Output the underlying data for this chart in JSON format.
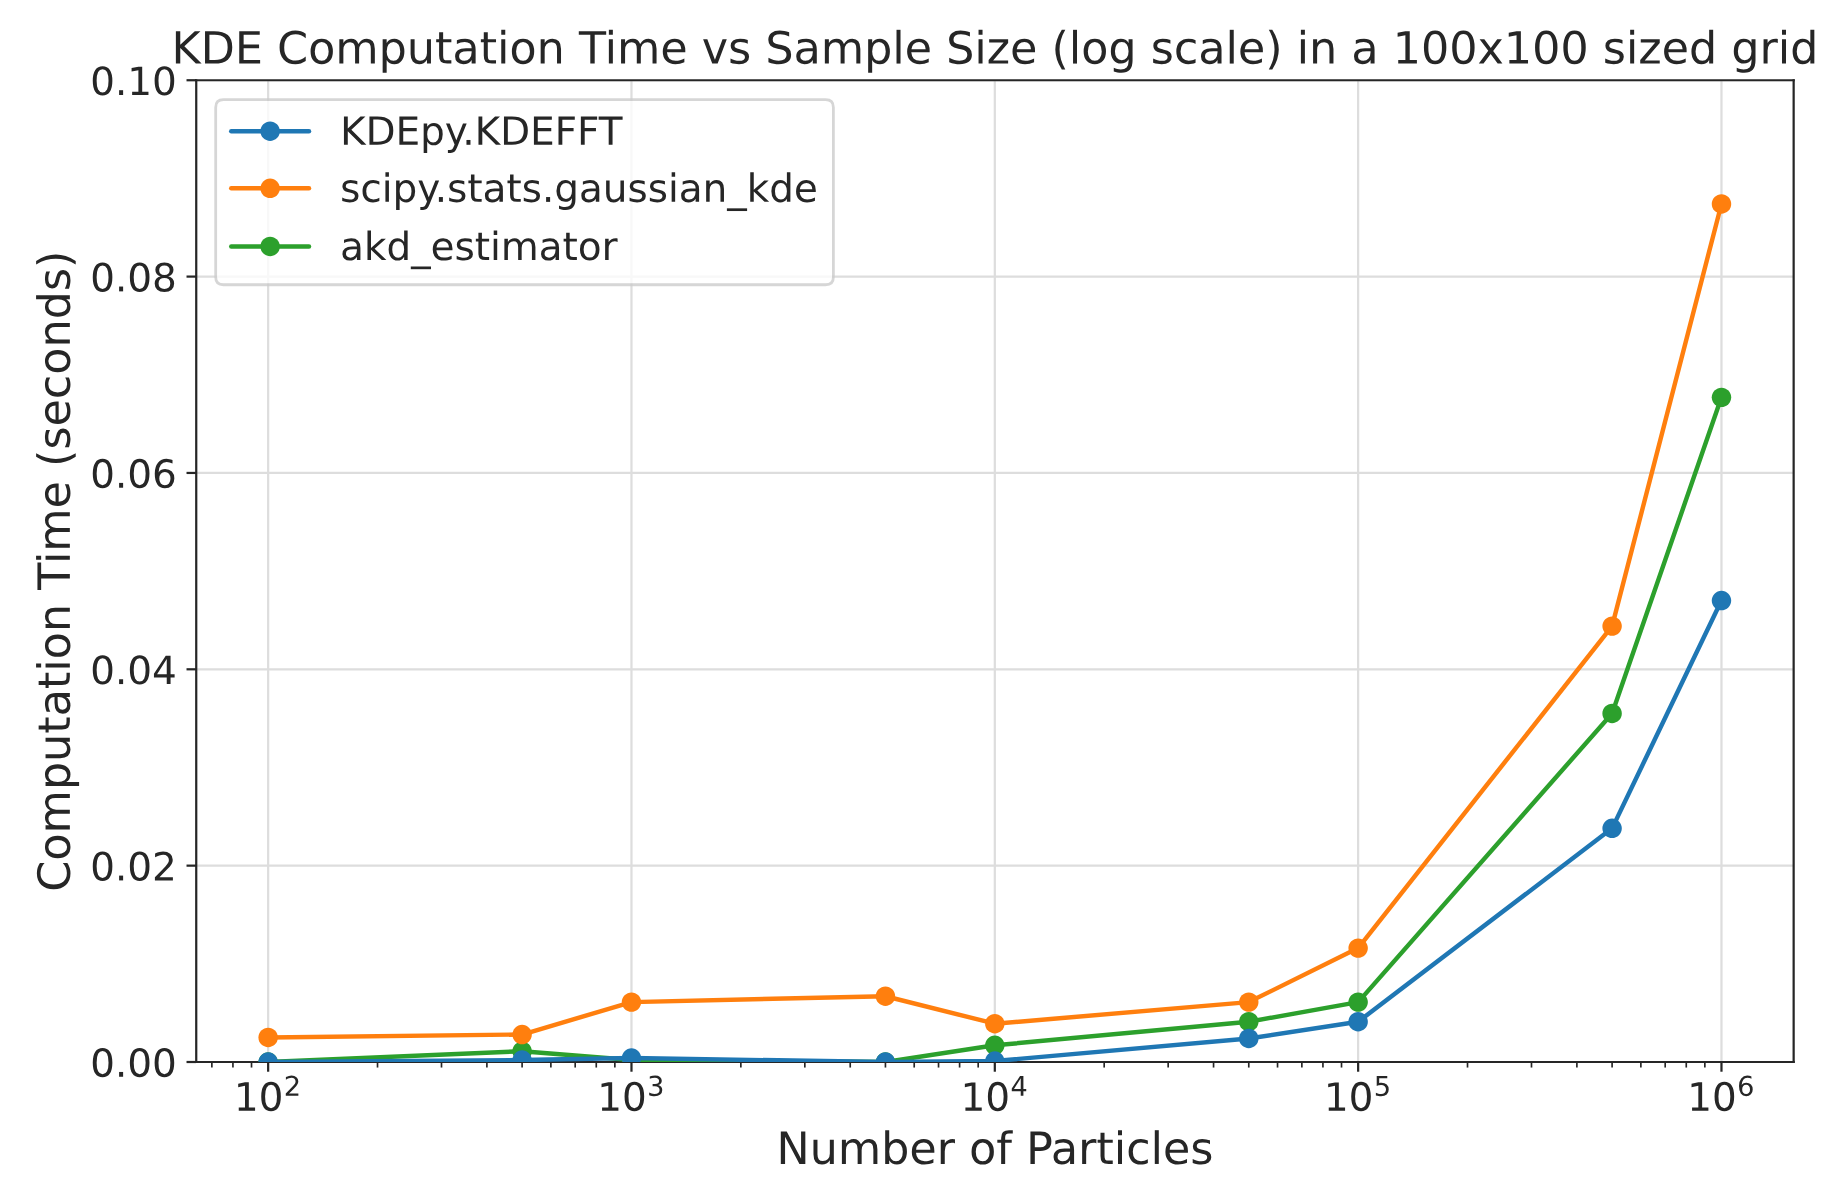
{
  "chart_data": {
    "type": "line",
    "title": "KDE Computation Time vs Sample Size (log scale) in a 100x100 sized grid",
    "xlabel": "Number of Particles",
    "ylabel": "Computation Time (seconds)",
    "x": [
      100,
      500,
      1000,
      5000,
      10000,
      50000,
      100000,
      500000,
      1000000
    ],
    "series": [
      {
        "name": "KDEpy.KDEFFT",
        "color": "#1f77b4",
        "values": [
          0.0,
          0.0002,
          0.0004,
          0.0,
          0.0001,
          0.0024,
          0.0041,
          0.0238,
          0.047
        ]
      },
      {
        "name": "scipy.stats.gaussian_kde",
        "color": "#ff7f0e",
        "values": [
          0.0025,
          0.0028,
          0.0061,
          0.0067,
          0.0039,
          0.0061,
          0.0116,
          0.0444,
          0.0874
        ]
      },
      {
        "name": "akd_estimator",
        "color": "#2ca02c",
        "values": [
          0.0,
          0.0011,
          0.0002,
          0.0,
          0.0017,
          0.0041,
          0.0061,
          0.0355,
          0.0677
        ]
      }
    ],
    "log": "x",
    "xlim": [
      63.4,
      1580000
    ],
    "xticks": [
      {
        "value": 100,
        "label": "10$^{2}$"
      },
      {
        "value": 1000,
        "label": "10$^{3}$"
      },
      {
        "value": 10000,
        "label": "10$^{4}$"
      },
      {
        "value": 100000,
        "label": "10$^{5}$"
      },
      {
        "value": 1000000,
        "label": "10$^{6}$"
      }
    ],
    "ylim": [
      0,
      0.1
    ],
    "yticks": [
      {
        "value": 0,
        "label": "0.00"
      },
      {
        "value": 0.02,
        "label": "0.02"
      },
      {
        "value": 0.04,
        "label": "0.04"
      },
      {
        "value": 0.06,
        "label": "0.06"
      },
      {
        "value": 0.08,
        "label": "0.08"
      },
      {
        "value": 0.1,
        "label": "0.10"
      }
    ],
    "grid": true,
    "legend": "top left",
    "marker": "circle",
    "line_style": "solid"
  }
}
